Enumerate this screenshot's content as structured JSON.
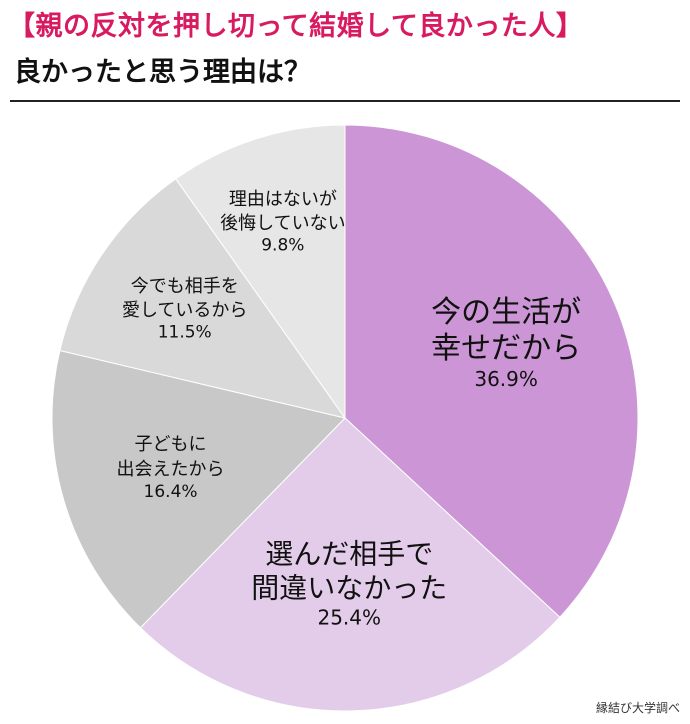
{
  "title": "【親の反対を押し切って結婚して良かった人】",
  "subtitle": "良かったと思う理由は？",
  "source": "縁結び大学調べ",
  "colors": {
    "title": "#d81b60",
    "slice_1": "#cc96d6",
    "slice_2": "#e3cce9",
    "slice_3": "#c8c8c8",
    "slice_4": "#d9d9d9",
    "slice_5": "#e6e6e6",
    "slice_6": "#f0f0f0"
  },
  "chart_data": {
    "type": "pie",
    "unit": "%",
    "slices": [
      {
        "label_lines": [
          "今の生活が",
          "幸せだから"
        ],
        "value": 36.9,
        "value_label": "36.9%"
      },
      {
        "label_lines": [
          "選んだ相手で",
          "間違いなかった"
        ],
        "value": 25.4,
        "value_label": "25.4%"
      },
      {
        "label_lines": [
          "子どもに",
          "出会えたから"
        ],
        "value": 16.4,
        "value_label": "16.4%"
      },
      {
        "label_lines": [
          "今でも相手を",
          "愛しているから"
        ],
        "value": 11.5,
        "value_label": "11.5%"
      },
      {
        "label_lines": [
          "理由はないが",
          "後悔していない"
        ],
        "value": 9.8,
        "value_label": "9.8%"
      }
    ]
  }
}
